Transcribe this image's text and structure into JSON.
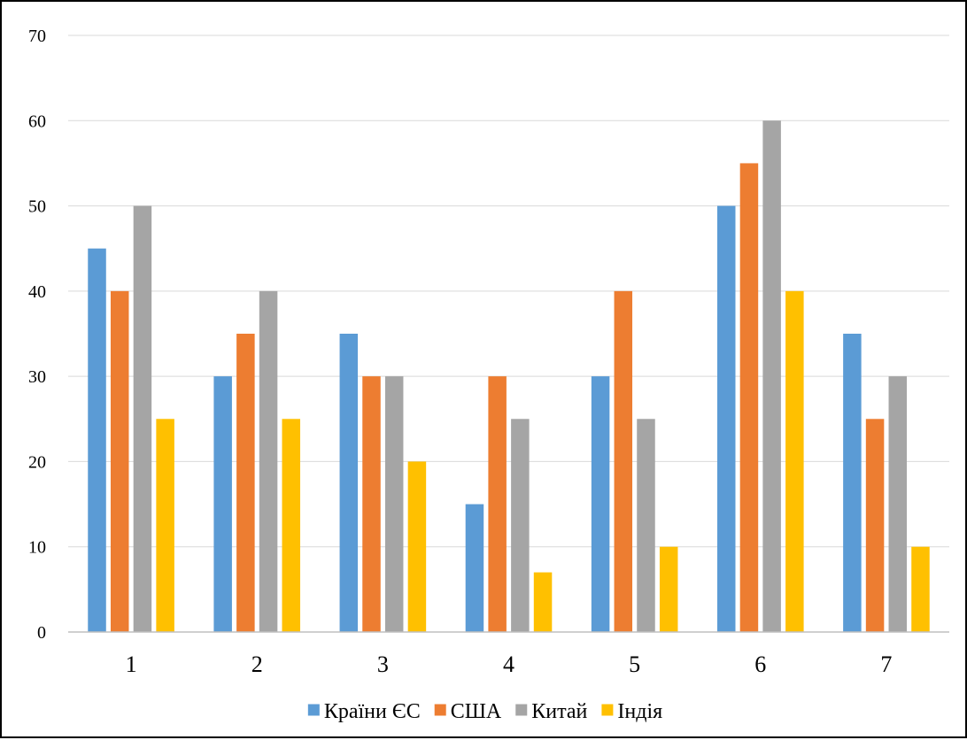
{
  "chart_data": {
    "type": "bar",
    "title": "",
    "xlabel": "",
    "ylabel": "",
    "categories": [
      "1",
      "2",
      "3",
      "4",
      "5",
      "6",
      "7"
    ],
    "ylim": [
      0,
      70
    ],
    "yticks": [
      "0",
      "10",
      "20",
      "30",
      "40",
      "50",
      "60",
      "70"
    ],
    "grid": true,
    "legend_position": "bottom",
    "series": [
      {
        "name": "Країни ЄС",
        "color": "#5B9BD5",
        "values": [
          45,
          30,
          35,
          15,
          30,
          50,
          35
        ]
      },
      {
        "name": "США",
        "color": "#ED7D31",
        "values": [
          40,
          35,
          30,
          30,
          40,
          55,
          25
        ]
      },
      {
        "name": "Китай",
        "color": "#A5A5A5",
        "values": [
          50,
          40,
          30,
          25,
          25,
          60,
          30
        ]
      },
      {
        "name": "Індія",
        "color": "#FFC000",
        "values": [
          25,
          25,
          20,
          7,
          10,
          40,
          10
        ]
      }
    ]
  }
}
